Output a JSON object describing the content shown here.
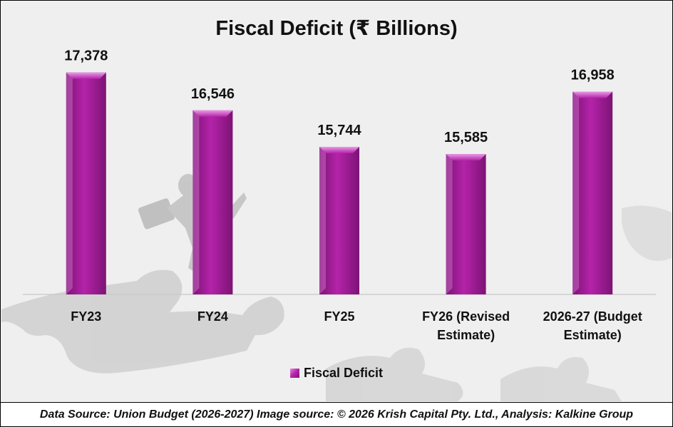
{
  "chart_data": {
    "type": "bar",
    "title": "Fiscal Deficit (₹ Billions)",
    "categories": [
      [
        "FY23"
      ],
      [
        "FY24"
      ],
      [
        "FY25"
      ],
      [
        "FY26 (Revised",
        "Estimate)"
      ],
      [
        "2026-27 (Budget",
        "Estimate)"
      ]
    ],
    "series": [
      {
        "name": "Fiscal Deficit",
        "values": [
          17378,
          16546,
          15744,
          15585,
          16958
        ],
        "labels": [
          "17,378",
          "16,546",
          "15,744",
          "15,585",
          "16,958"
        ],
        "color": "#b423a9"
      }
    ],
    "ylim": [
      12500,
      18000
    ],
    "xlabel": "",
    "ylabel": "",
    "grid": false,
    "legend": "bottom"
  },
  "footer": {
    "text": "Data Source: Union Budget (2026-2027) Image source: © 2026 Krish Capital Pty. Ltd., Analysis: Kalkine Group"
  },
  "colors": {
    "bar_light": "#e99be6",
    "bar_mid": "#b423a9",
    "bar_dark": "#7d1375",
    "background": "#efefef",
    "watermark": "#bdbdbd"
  }
}
